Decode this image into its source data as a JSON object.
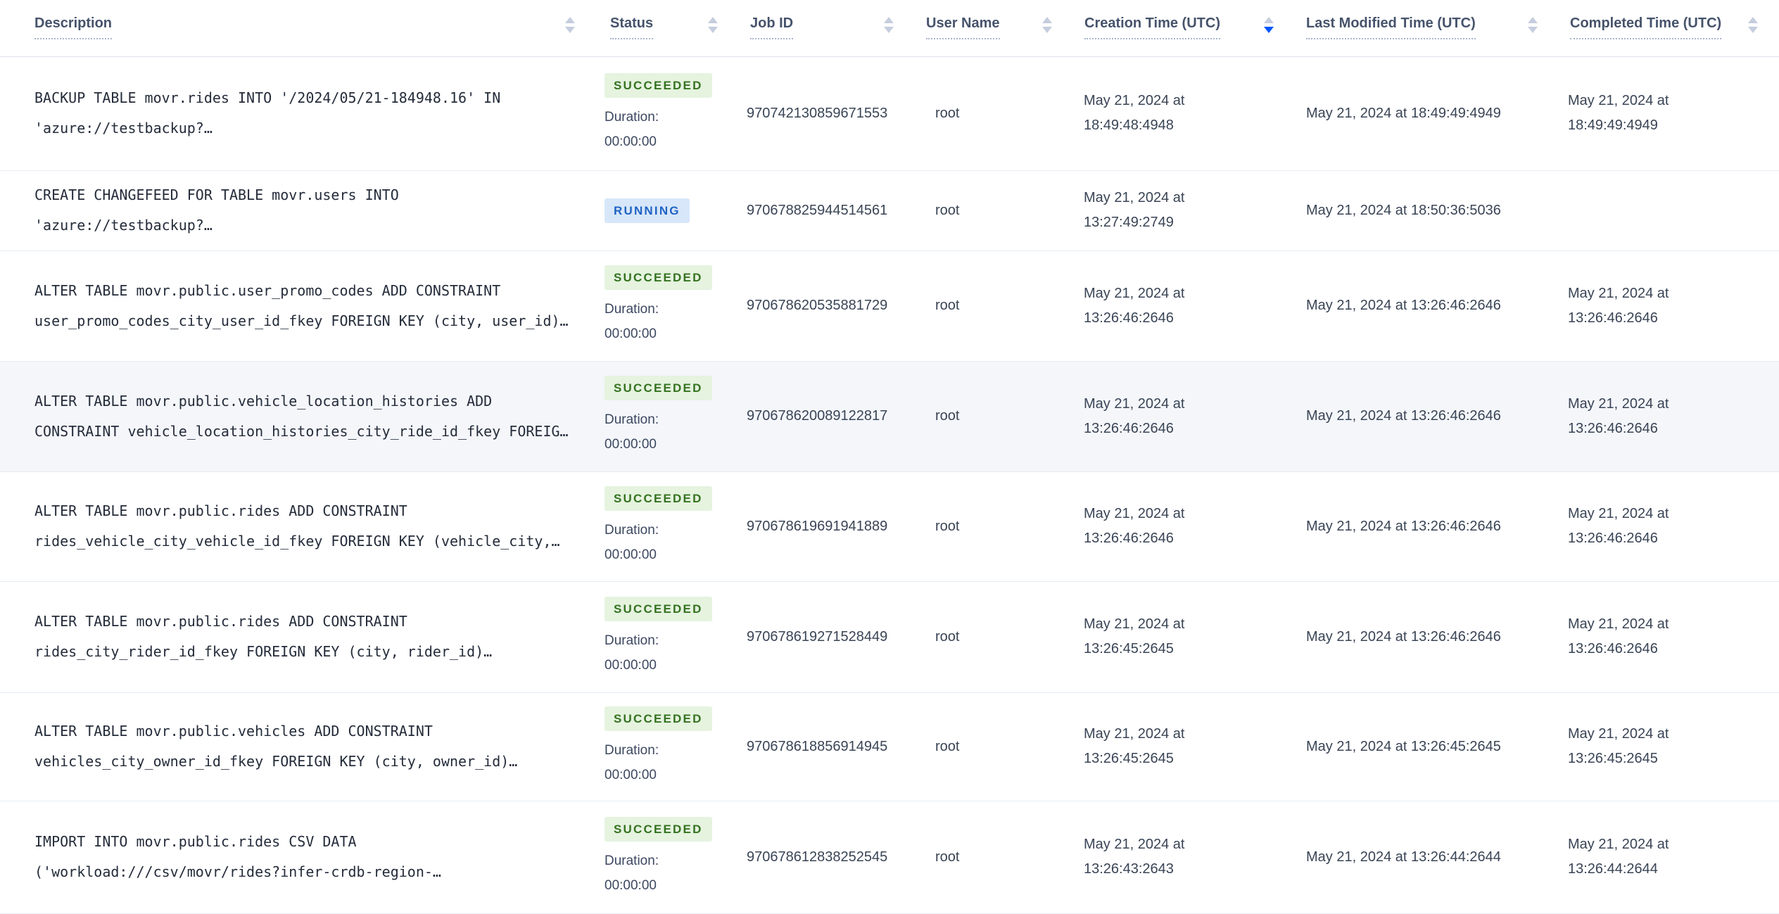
{
  "table": {
    "columns": [
      {
        "label": "Description",
        "sort": "none"
      },
      {
        "label": "Status",
        "sort": "none"
      },
      {
        "label": "Job ID",
        "sort": "none"
      },
      {
        "label": "User Name",
        "sort": "none"
      },
      {
        "label": "Creation Time (UTC)",
        "sort": "desc"
      },
      {
        "label": "Last Modified Time (UTC)",
        "sort": "none"
      },
      {
        "label": "Completed Time (UTC)",
        "sort": "none"
      }
    ],
    "duration_label": "Duration:",
    "rows": [
      {
        "description": "BACKUP TABLE movr.rides INTO '/2024/05/21-184948.16' IN\n'azure://testbackup?…",
        "status": "SUCCEEDED",
        "duration": "00:00:00",
        "job_id": "970742130859671553",
        "user_name": "root",
        "creation_time": "May 21, 2024 at 18:49:48:4948",
        "last_modified_time": "May 21, 2024 at 18:49:49:4949",
        "completed_time": "May 21, 2024 at 18:49:49:4949"
      },
      {
        "description": "CREATE CHANGEFEED FOR TABLE movr.users INTO\n'azure://testbackup?…",
        "status": "RUNNING",
        "duration": null,
        "job_id": "970678825944514561",
        "user_name": "root",
        "creation_time": "May 21, 2024 at 13:27:49:2749",
        "last_modified_time": "May 21, 2024 at 18:50:36:5036",
        "completed_time": ""
      },
      {
        "description": "ALTER TABLE movr.public.user_promo_codes ADD CONSTRAINT\nuser_promo_codes_city_user_id_fkey FOREIGN KEY (city, user_id)…",
        "status": "SUCCEEDED",
        "duration": "00:00:00",
        "job_id": "970678620535881729",
        "user_name": "root",
        "creation_time": "May 21, 2024 at 13:26:46:2646",
        "last_modified_time": "May 21, 2024 at 13:26:46:2646",
        "completed_time": "May 21, 2024 at 13:26:46:2646"
      },
      {
        "description": "ALTER TABLE movr.public.vehicle_location_histories ADD\nCONSTRAINT vehicle_location_histories_city_ride_id_fkey FOREIG…",
        "status": "SUCCEEDED",
        "duration": "00:00:00",
        "job_id": "970678620089122817",
        "user_name": "root",
        "creation_time": "May 21, 2024 at 13:26:46:2646",
        "last_modified_time": "May 21, 2024 at 13:26:46:2646",
        "completed_time": "May 21, 2024 at 13:26:46:2646"
      },
      {
        "description": "ALTER TABLE movr.public.rides ADD CONSTRAINT\nrides_vehicle_city_vehicle_id_fkey FOREIGN KEY (vehicle_city,…",
        "status": "SUCCEEDED",
        "duration": "00:00:00",
        "job_id": "970678619691941889",
        "user_name": "root",
        "creation_time": "May 21, 2024 at 13:26:46:2646",
        "last_modified_time": "May 21, 2024 at 13:26:46:2646",
        "completed_time": "May 21, 2024 at 13:26:46:2646"
      },
      {
        "description": "ALTER TABLE movr.public.rides ADD CONSTRAINT\nrides_city_rider_id_fkey FOREIGN KEY (city, rider_id)…",
        "status": "SUCCEEDED",
        "duration": "00:00:00",
        "job_id": "970678619271528449",
        "user_name": "root",
        "creation_time": "May 21, 2024 at 13:26:45:2645",
        "last_modified_time": "May 21, 2024 at 13:26:46:2646",
        "completed_time": "May 21, 2024 at 13:26:46:2646"
      },
      {
        "description": "ALTER TABLE movr.public.vehicles ADD CONSTRAINT\nvehicles_city_owner_id_fkey FOREIGN KEY (city, owner_id)…",
        "status": "SUCCEEDED",
        "duration": "00:00:00",
        "job_id": "970678618856914945",
        "user_name": "root",
        "creation_time": "May 21, 2024 at 13:26:45:2645",
        "last_modified_time": "May 21, 2024 at 13:26:45:2645",
        "completed_time": "May 21, 2024 at 13:26:45:2645"
      },
      {
        "description": "IMPORT INTO movr.public.rides CSV DATA\n('workload:///csv/movr/rides?infer-crdb-region-…",
        "status": "SUCCEEDED",
        "duration": "00:00:00",
        "job_id": "970678612838252545",
        "user_name": "root",
        "creation_time": "May 21, 2024 at 13:26:43:2643",
        "last_modified_time": "May 21, 2024 at 13:26:44:2644",
        "completed_time": "May 21, 2024 at 13:26:44:2644"
      }
    ]
  },
  "colors": {
    "sort_active": "#0055ff",
    "succeeded_bg": "#e5f3df",
    "succeeded_text": "#357220",
    "running_bg": "#d7e7f9",
    "running_text": "#2163c4"
  }
}
